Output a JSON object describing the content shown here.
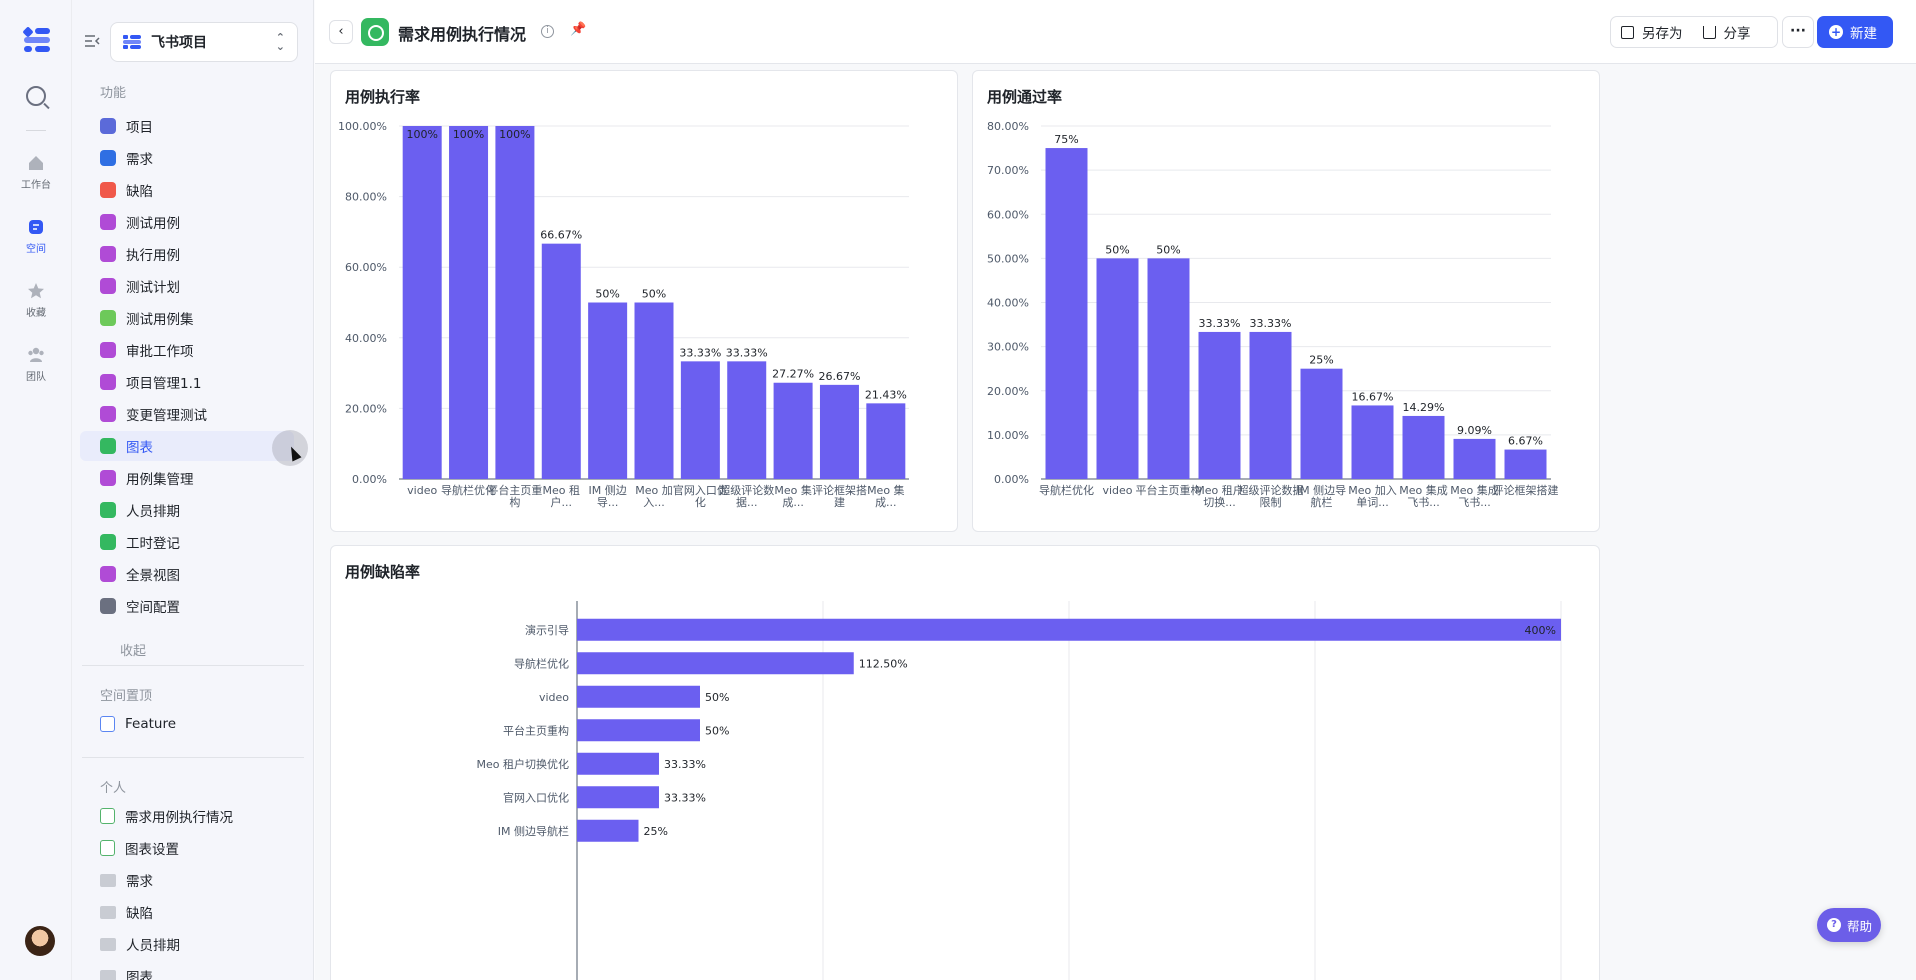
{
  "rail": {
    "items": [
      {
        "label": "工作台",
        "icon": "home-icon"
      },
      {
        "label": "空间",
        "icon": "space-icon"
      },
      {
        "label": "收藏",
        "icon": "star-icon"
      },
      {
        "label": "团队",
        "icon": "team-icon"
      }
    ]
  },
  "sidebar": {
    "project": "飞书项目",
    "sections": {
      "features": "功能",
      "pinned": "空间置顶",
      "personal": "个人"
    },
    "features": [
      {
        "label": "项目",
        "color": "#5b6ad9"
      },
      {
        "label": "需求",
        "color": "#2f6fe3"
      },
      {
        "label": "缺陷",
        "color": "#f0584a"
      },
      {
        "label": "测试用例",
        "color": "#b04bd6"
      },
      {
        "label": "执行用例",
        "color": "#b04bd6"
      },
      {
        "label": "测试计划",
        "color": "#b04bd6"
      },
      {
        "label": "测试用例集",
        "color": "#6dc95a"
      },
      {
        "label": "审批工作项",
        "color": "#b04bd6"
      },
      {
        "label": "项目管理1.1",
        "color": "#b04bd6"
      },
      {
        "label": "变更管理测试",
        "color": "#b04bd6"
      },
      {
        "label": "图表",
        "color": "#34b860"
      },
      {
        "label": "用例集管理",
        "color": "#b04bd6"
      },
      {
        "label": "人员排期",
        "color": "#34b860"
      },
      {
        "label": "工时登记",
        "color": "#34b860"
      },
      {
        "label": "全景视图",
        "color": "#b04bd6"
      },
      {
        "label": "空间配置",
        "color": "#6b7080"
      }
    ],
    "collapse": "收起",
    "pinned_items": [
      {
        "label": "Feature"
      }
    ],
    "personal_items": [
      {
        "label": "需求用例执行情况",
        "type": "doc"
      },
      {
        "label": "图表设置",
        "type": "doc"
      },
      {
        "label": "需求",
        "type": "folder"
      },
      {
        "label": "缺陷",
        "type": "folder"
      },
      {
        "label": "人员排期",
        "type": "folder"
      },
      {
        "label": "图表",
        "type": "folder"
      }
    ]
  },
  "header": {
    "title": "需求用例执行情况",
    "save_as": "另存为",
    "share": "分享",
    "more": "···",
    "new": "新建"
  },
  "help": "帮助",
  "chart_data": [
    {
      "type": "bar",
      "title": "用例执行率",
      "categories": [
        "video",
        "导航栏优化",
        "平台主页重构",
        "Meo 租户...",
        "IM 侧边导...",
        "Meo 加入...",
        "官网入口优化",
        "超级评论数据...",
        "Meo 集成...",
        "评论框架搭建",
        "Meo 集成..."
      ],
      "values": [
        100,
        100,
        100,
        66.67,
        50,
        50,
        33.33,
        33.33,
        27.27,
        26.67,
        21.43
      ],
      "value_labels": [
        "100%",
        "100%",
        "100%",
        "66.67%",
        "50%",
        "50%",
        "33.33%",
        "33.33%",
        "27.27%",
        "26.67%",
        "21.43%"
      ],
      "yticks": [
        "0.00%",
        "20.00%",
        "40.00%",
        "60.00%",
        "80.00%",
        "100.00%"
      ],
      "ylim": [
        0,
        100
      ]
    },
    {
      "type": "bar",
      "title": "用例通过率",
      "categories": [
        "导航栏优化",
        "video",
        "平台主页重构",
        "Meo 租户切换...",
        "超级评论数据限制",
        "IM 侧边导航栏",
        "Meo 加入单词...",
        "Meo 集成飞书...",
        "Meo 集成飞书...",
        "评论框架搭建"
      ],
      "values": [
        75,
        50,
        50,
        33.33,
        33.33,
        25,
        16.67,
        14.29,
        9.09,
        6.67
      ],
      "value_labels": [
        "75%",
        "50%",
        "50%",
        "33.33%",
        "33.33%",
        "25%",
        "16.67%",
        "14.29%",
        "9.09%",
        "6.67%"
      ],
      "yticks": [
        "0.00%",
        "10.00%",
        "20.00%",
        "30.00%",
        "40.00%",
        "50.00%",
        "60.00%",
        "70.00%",
        "80.00%"
      ],
      "ylim": [
        0,
        80
      ]
    },
    {
      "type": "bar",
      "orientation": "horizontal",
      "title": "用例缺陷率",
      "categories": [
        "演示引导",
        "导航栏优化",
        "video",
        "平台主页重构",
        "Meo 租户切换优化",
        "官网入口优化",
        "IM 侧边导航栏"
      ],
      "values": [
        400,
        112.5,
        50,
        50,
        33.33,
        33.33,
        25
      ],
      "value_labels": [
        "400%",
        "112.50%",
        "50%",
        "50%",
        "33.33%",
        "33.33%",
        "25%"
      ],
      "xlim": [
        0,
        400
      ]
    }
  ],
  "colors": {
    "bar": "#6b5ff0",
    "accent": "#3358f4"
  }
}
